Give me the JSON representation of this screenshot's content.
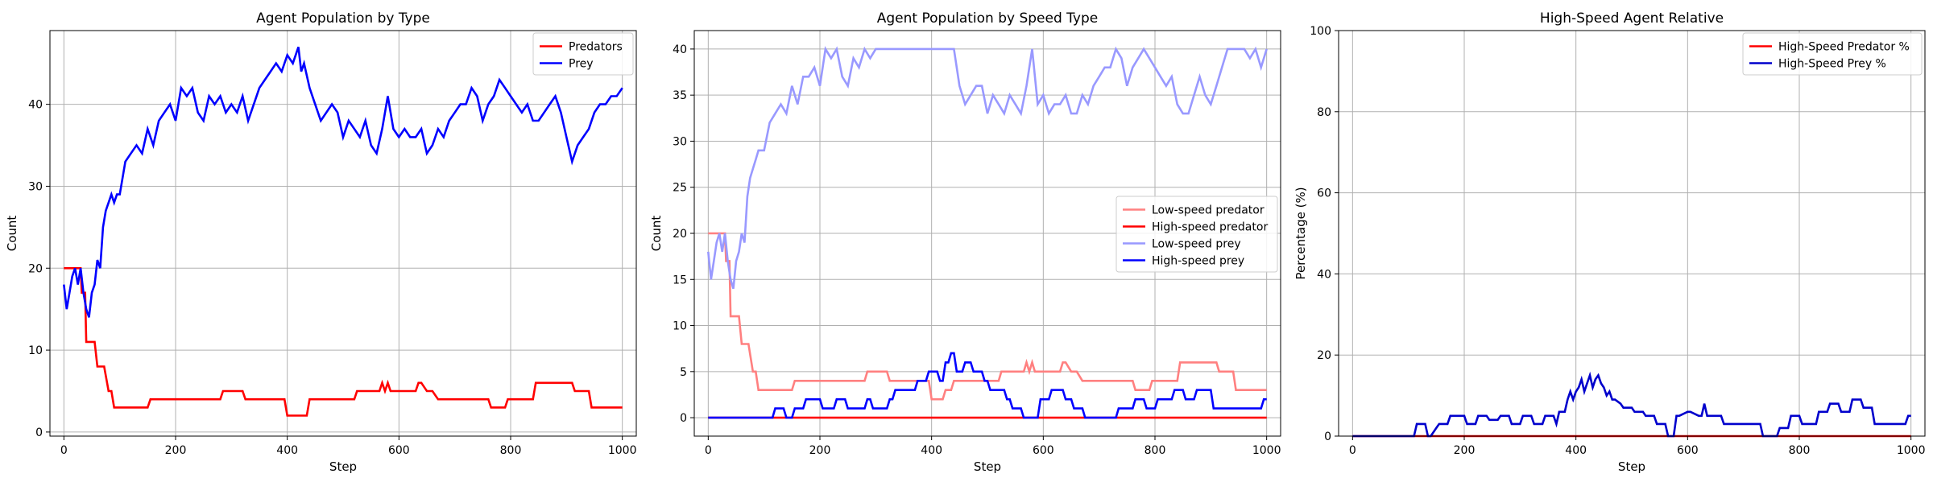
{
  "chart_data": [
    {
      "type": "line",
      "title": "Agent Population by Type",
      "xlabel": "Step",
      "ylabel": "Count",
      "xlim": [
        -25,
        1025
      ],
      "ylim": [
        -0.5,
        49
      ],
      "xticks": [
        0,
        200,
        400,
        600,
        800,
        1000
      ],
      "yticks": [
        0,
        10,
        20,
        30,
        40
      ],
      "grid": true,
      "legend": "top-right",
      "series": [
        {
          "name": "Predators",
          "color": "#ff0000",
          "x": [
            0,
            30,
            32,
            38,
            40,
            45,
            48,
            55,
            60,
            65,
            70,
            72,
            80,
            85,
            90,
            150,
            155,
            280,
            285,
            320,
            325,
            395,
            400,
            435,
            440,
            520,
            525,
            560,
            565,
            570,
            575,
            580,
            585,
            630,
            635,
            640,
            650,
            660,
            670,
            760,
            765,
            790,
            795,
            840,
            845,
            910,
            915,
            940,
            945,
            1000
          ],
          "y": [
            20,
            20,
            17,
            17,
            11,
            11,
            11,
            11,
            8,
            8,
            8,
            8,
            5,
            5,
            3,
            3,
            4,
            4,
            5,
            5,
            4,
            4,
            2,
            2,
            4,
            4,
            5,
            5,
            5,
            6,
            5,
            6,
            5,
            5,
            6,
            6,
            5,
            5,
            4,
            4,
            3,
            3,
            4,
            4,
            6,
            6,
            5,
            5,
            3,
            3
          ]
        },
        {
          "name": "Prey",
          "color": "#0000ff",
          "x": [
            0,
            5,
            10,
            15,
            20,
            25,
            30,
            35,
            40,
            45,
            50,
            55,
            60,
            65,
            70,
            75,
            80,
            85,
            90,
            95,
            100,
            110,
            120,
            130,
            140,
            150,
            160,
            170,
            180,
            190,
            200,
            210,
            220,
            230,
            240,
            250,
            260,
            270,
            280,
            290,
            300,
            310,
            320,
            330,
            340,
            350,
            360,
            370,
            380,
            390,
            400,
            410,
            420,
            425,
            430,
            440,
            450,
            460,
            470,
            480,
            490,
            500,
            510,
            520,
            530,
            540,
            550,
            560,
            570,
            580,
            590,
            600,
            610,
            620,
            630,
            640,
            650,
            660,
            670,
            680,
            690,
            700,
            710,
            720,
            730,
            740,
            750,
            760,
            770,
            780,
            790,
            800,
            810,
            820,
            830,
            840,
            850,
            860,
            870,
            880,
            890,
            900,
            910,
            920,
            930,
            940,
            950,
            960,
            970,
            980,
            990,
            1000
          ],
          "y": [
            18,
            15,
            17,
            19,
            20,
            18,
            20,
            17,
            15,
            14,
            17,
            18,
            21,
            20,
            25,
            27,
            28,
            29,
            28,
            29,
            29,
            33,
            34,
            35,
            34,
            37,
            35,
            38,
            39,
            40,
            38,
            42,
            41,
            42,
            39,
            38,
            41,
            40,
            41,
            39,
            40,
            39,
            41,
            38,
            40,
            42,
            43,
            44,
            45,
            44,
            46,
            45,
            47,
            44,
            45,
            42,
            40,
            38,
            39,
            40,
            39,
            36,
            38,
            37,
            36,
            38,
            35,
            34,
            37,
            41,
            37,
            36,
            37,
            36,
            36,
            37,
            34,
            35,
            37,
            36,
            38,
            39,
            40,
            40,
            42,
            41,
            38,
            40,
            41,
            43,
            42,
            41,
            40,
            39,
            40,
            38,
            38,
            39,
            40,
            41,
            39,
            36,
            33,
            35,
            36,
            37,
            39,
            40,
            40,
            41,
            41,
            42
          ]
        }
      ]
    },
    {
      "type": "line",
      "title": "Agent Population by Speed Type",
      "xlabel": "Step",
      "ylabel": "Count",
      "xlim": [
        -25,
        1025
      ],
      "ylim": [
        -2,
        42
      ],
      "xticks": [
        0,
        200,
        400,
        600,
        800,
        1000
      ],
      "yticks": [
        0,
        5,
        10,
        15,
        20,
        25,
        30,
        35,
        40
      ],
      "grid": true,
      "legend": "center-right",
      "series": [
        {
          "name": "Low-speed predator",
          "color": "#ff8080",
          "x": [
            0,
            30,
            32,
            38,
            40,
            45,
            48,
            55,
            60,
            65,
            70,
            72,
            80,
            85,
            90,
            150,
            155,
            280,
            285,
            320,
            325,
            395,
            400,
            420,
            425,
            435,
            440,
            520,
            525,
            560,
            565,
            570,
            575,
            580,
            585,
            630,
            635,
            640,
            650,
            660,
            670,
            760,
            765,
            790,
            795,
            840,
            845,
            910,
            915,
            940,
            945,
            1000
          ],
          "y": [
            20,
            20,
            17,
            17,
            11,
            11,
            11,
            11,
            8,
            8,
            8,
            8,
            5,
            5,
            3,
            3,
            4,
            4,
            5,
            5,
            4,
            4,
            2,
            2,
            3,
            3,
            4,
            4,
            5,
            5,
            5,
            6,
            5,
            6,
            5,
            5,
            6,
            6,
            5,
            5,
            4,
            4,
            3,
            3,
            4,
            4,
            6,
            6,
            5,
            5,
            3,
            3
          ]
        },
        {
          "name": "High-speed predator",
          "color": "#ff0000",
          "x": [
            0,
            1000
          ],
          "y": [
            0,
            0
          ]
        },
        {
          "name": "Low-speed prey",
          "color": "#9999ff",
          "x": [
            0,
            5,
            10,
            15,
            20,
            25,
            30,
            35,
            40,
            45,
            50,
            55,
            60,
            65,
            70,
            75,
            80,
            85,
            90,
            95,
            100,
            110,
            120,
            130,
            140,
            150,
            160,
            170,
            180,
            190,
            200,
            210,
            220,
            230,
            240,
            250,
            260,
            270,
            280,
            290,
            300,
            310,
            320,
            330,
            340,
            350,
            360,
            370,
            380,
            390,
            400,
            410,
            420,
            425,
            430,
            440,
            450,
            460,
            470,
            480,
            490,
            500,
            510,
            520,
            530,
            540,
            550,
            560,
            570,
            580,
            590,
            600,
            610,
            620,
            630,
            640,
            650,
            660,
            670,
            680,
            690,
            700,
            710,
            720,
            730,
            740,
            750,
            760,
            770,
            780,
            790,
            800,
            810,
            820,
            830,
            840,
            850,
            860,
            870,
            880,
            890,
            900,
            910,
            920,
            930,
            940,
            950,
            960,
            970,
            980,
            990,
            1000
          ],
          "y": [
            18,
            15,
            17,
            19,
            20,
            18,
            20,
            17,
            15,
            14,
            17,
            18,
            20,
            19,
            24,
            26,
            27,
            28,
            29,
            29,
            29,
            32,
            33,
            34,
            33,
            36,
            34,
            37,
            37,
            38,
            36,
            40,
            39,
            40,
            37,
            36,
            39,
            38,
            40,
            39,
            40,
            40,
            40,
            40,
            40,
            40,
            40,
            40,
            40,
            40,
            40,
            40,
            40,
            40,
            40,
            40,
            36,
            34,
            35,
            36,
            36,
            33,
            35,
            34,
            33,
            35,
            34,
            33,
            36,
            40,
            34,
            35,
            33,
            34,
            34,
            35,
            33,
            33,
            35,
            34,
            36,
            37,
            38,
            38,
            40,
            39,
            36,
            38,
            39,
            40,
            39,
            38,
            37,
            36,
            37,
            34,
            33,
            33,
            35,
            37,
            35,
            34,
            36,
            38,
            40,
            40,
            40,
            40,
            39,
            40,
            38,
            40
          ]
        },
        {
          "name": "High-speed prey",
          "color": "#0000ff",
          "x": [
            0,
            115,
            120,
            135,
            140,
            150,
            155,
            170,
            175,
            200,
            205,
            225,
            230,
            245,
            250,
            280,
            285,
            290,
            295,
            320,
            325,
            330,
            335,
            370,
            375,
            390,
            395,
            410,
            415,
            420,
            425,
            430,
            435,
            440,
            445,
            455,
            460,
            470,
            475,
            490,
            495,
            500,
            505,
            530,
            535,
            540,
            545,
            560,
            565,
            590,
            595,
            610,
            615,
            635,
            640,
            650,
            655,
            670,
            675,
            730,
            735,
            760,
            765,
            780,
            785,
            800,
            805,
            830,
            835,
            850,
            855,
            870,
            875,
            900,
            905,
            990,
            995,
            1000
          ],
          "y": [
            0,
            0,
            1,
            1,
            0,
            0,
            1,
            1,
            2,
            2,
            1,
            1,
            2,
            2,
            1,
            1,
            2,
            2,
            1,
            1,
            2,
            2,
            3,
            3,
            4,
            4,
            5,
            5,
            4,
            4,
            6,
            6,
            7,
            7,
            5,
            5,
            6,
            6,
            5,
            5,
            4,
            4,
            3,
            3,
            2,
            2,
            1,
            1,
            0,
            0,
            2,
            2,
            3,
            3,
            2,
            2,
            1,
            1,
            0,
            0,
            1,
            1,
            2,
            2,
            1,
            1,
            2,
            2,
            3,
            3,
            2,
            2,
            3,
            3,
            1,
            1,
            2,
            2
          ]
        }
      ]
    },
    {
      "type": "line",
      "title": "High-Speed Agent Relative",
      "xlabel": "Step",
      "ylabel": "Percentage (%)",
      "xlim": [
        -25,
        1025
      ],
      "ylim": [
        0,
        100
      ],
      "xticks": [
        0,
        200,
        400,
        600,
        800,
        1000
      ],
      "yticks": [
        0,
        20,
        40,
        60,
        80,
        100
      ],
      "grid": true,
      "legend": "top-right",
      "series": [
        {
          "name": "High-Speed Predator %",
          "color": "#ff0000",
          "x": [
            0,
            1000
          ],
          "y": [
            0,
            0
          ]
        },
        {
          "name": "High-Speed Prey %",
          "color": "#0000cc",
          "x": [
            0,
            110,
            115,
            130,
            135,
            140,
            150,
            155,
            170,
            175,
            200,
            205,
            220,
            225,
            240,
            245,
            260,
            265,
            280,
            285,
            300,
            305,
            320,
            325,
            340,
            345,
            360,
            365,
            370,
            380,
            385,
            390,
            395,
            400,
            405,
            410,
            415,
            420,
            425,
            430,
            435,
            440,
            445,
            450,
            455,
            460,
            465,
            470,
            480,
            485,
            500,
            505,
            520,
            525,
            540,
            545,
            560,
            565,
            575,
            580,
            585,
            600,
            605,
            620,
            625,
            630,
            635,
            660,
            665,
            690,
            695,
            730,
            735,
            760,
            765,
            780,
            785,
            800,
            805,
            830,
            835,
            850,
            855,
            870,
            875,
            890,
            895,
            910,
            915,
            930,
            935,
            990,
            995,
            1000
          ],
          "y": [
            0,
            0,
            3,
            3,
            0,
            0,
            2,
            3,
            3,
            5,
            5,
            3,
            3,
            5,
            5,
            4,
            4,
            5,
            5,
            3,
            3,
            5,
            5,
            3,
            3,
            5,
            5,
            3,
            6,
            6,
            9,
            11,
            9,
            11,
            12,
            14,
            11,
            13,
            15,
            12,
            14,
            15,
            13,
            12,
            10,
            11,
            9,
            9,
            8,
            7,
            7,
            6,
            6,
            5,
            5,
            3,
            3,
            0,
            0,
            5,
            5,
            6,
            6,
            5,
            5,
            8,
            5,
            5,
            3,
            3,
            3,
            3,
            0,
            0,
            2,
            2,
            5,
            5,
            3,
            3,
            6,
            6,
            8,
            8,
            6,
            6,
            9,
            9,
            7,
            7,
            3,
            3,
            5,
            5
          ]
        }
      ]
    }
  ]
}
